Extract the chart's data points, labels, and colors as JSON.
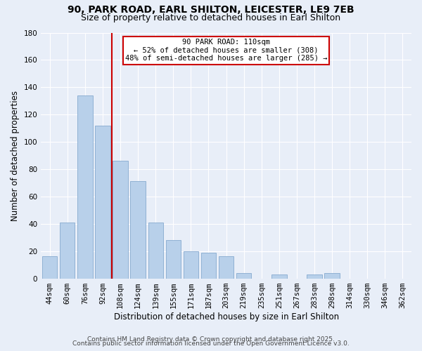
{
  "title_line1": "90, PARK ROAD, EARL SHILTON, LEICESTER, LE9 7EB",
  "title_line2": "Size of property relative to detached houses in Earl Shilton",
  "xlabel": "Distribution of detached houses by size in Earl Shilton",
  "ylabel": "Number of detached properties",
  "bar_labels": [
    "44sqm",
    "60sqm",
    "76sqm",
    "92sqm",
    "108sqm",
    "124sqm",
    "139sqm",
    "155sqm",
    "171sqm",
    "187sqm",
    "203sqm",
    "219sqm",
    "235sqm",
    "251sqm",
    "267sqm",
    "283sqm",
    "298sqm",
    "314sqm",
    "330sqm",
    "346sqm",
    "362sqm"
  ],
  "bar_heights": [
    16,
    41,
    134,
    112,
    86,
    71,
    41,
    28,
    20,
    19,
    16,
    4,
    0,
    3,
    0,
    3,
    4,
    0,
    0,
    0,
    0
  ],
  "bar_color": "#b8d0ea",
  "bar_edge_color": "#85aacf",
  "vline_color": "#cc0000",
  "vline_label": "90 PARK ROAD: 110sqm",
  "annotation_line2": "← 52% of detached houses are smaller (308)",
  "annotation_line3": "48% of semi-detached houses are larger (285) →",
  "annotation_box_color": "#ffffff",
  "annotation_box_edge": "#cc0000",
  "ylim": [
    0,
    180
  ],
  "yticks": [
    0,
    20,
    40,
    60,
    80,
    100,
    120,
    140,
    160,
    180
  ],
  "background_color": "#e8eef8",
  "footer_line1": "Contains HM Land Registry data © Crown copyright and database right 2025.",
  "footer_line2": "Contains public sector information licensed under the Open Government Licence v3.0.",
  "title_fontsize": 10,
  "subtitle_fontsize": 9,
  "axis_label_fontsize": 8.5,
  "tick_fontsize": 7.5,
  "footer_fontsize": 6.5
}
